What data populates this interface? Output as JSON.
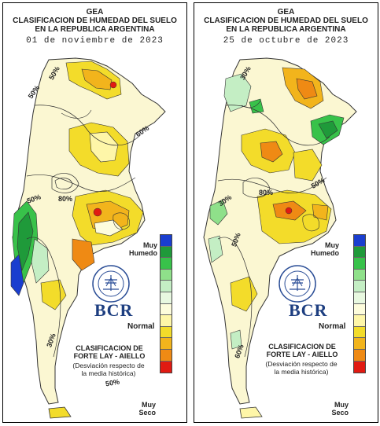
{
  "panels": [
    {
      "title1": "GEA",
      "title2": "CLASIFICACION DE HUMEDAD DEL SUELO",
      "title3": "EN LA REPUBLICA ARGENTINA",
      "date": "01 de noviembre de 2023",
      "contour_labels": [
        "50%",
        "50%",
        "60%",
        "50%",
        "80%",
        "30%",
        "50%"
      ]
    },
    {
      "title1": "GEA",
      "title2": "CLASIFICACION DE HUMEDAD DEL SUELO",
      "title3": "EN LA REPUBLICA ARGENTINA",
      "date": "25 de octubre de 2023",
      "contour_labels": [
        "30%",
        "50%",
        "80%",
        "30%",
        "50%",
        "60%"
      ]
    }
  ],
  "legend": {
    "top_label": "Muy Humedo",
    "middle_label": "Normal",
    "bottom_label": "Muy Seco",
    "classes": [
      {
        "name": "Muy Humedo",
        "color": "#1a3ecf"
      },
      {
        "name": "humedo-2",
        "color": "#1f9a3a"
      },
      {
        "name": "humedo-3",
        "color": "#38c24a"
      },
      {
        "name": "humedo-4",
        "color": "#8fe08a"
      },
      {
        "name": "humedo-5",
        "color": "#c4eec4"
      },
      {
        "name": "humedo-6",
        "color": "#e8f8e0"
      },
      {
        "name": "Normal",
        "color": "#fdfcdc"
      },
      {
        "name": "seco-1",
        "color": "#fef6a8"
      },
      {
        "name": "seco-2",
        "color": "#f3dc2a"
      },
      {
        "name": "seco-3",
        "color": "#f2b41c"
      },
      {
        "name": "seco-4",
        "color": "#ef8a14"
      },
      {
        "name": "Muy Seco",
        "color": "#e11a12"
      }
    ]
  },
  "logo": {
    "text": "BCR",
    "seal_text": "BOLSA DE COMERCIO DE ROSARIO"
  },
  "classification": {
    "title_line1": "CLASIFICACION DE",
    "title_line2": "FORTE LAY - AIELLO",
    "desc_line1": "(Desviación respecto de",
    "desc_line2": "la media histórica)"
  },
  "colors": {
    "map_fill": "#fbf7d2",
    "line": "#333333"
  }
}
